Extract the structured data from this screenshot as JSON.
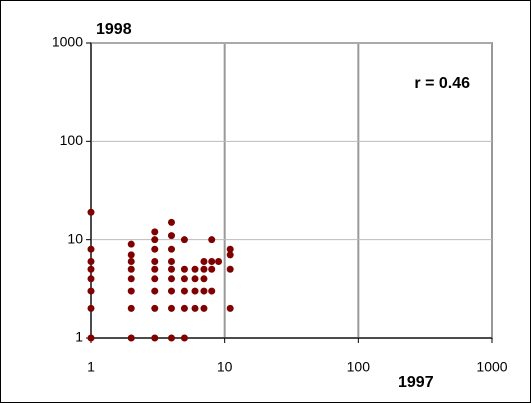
{
  "chart_data": {
    "type": "scatter",
    "y_label": "1998",
    "x_label": "1997",
    "annotation": "r = 0.46",
    "log_scale": true,
    "grid": true,
    "color": "#7f0000",
    "xlim": [
      1,
      1000
    ],
    "ylim": [
      1,
      1000
    ],
    "xticks": [
      1,
      10,
      100,
      1000
    ],
    "yticks": [
      1,
      10,
      100,
      1000
    ],
    "x": [
      1,
      1,
      1,
      1,
      1,
      1,
      1,
      1,
      2,
      2,
      2,
      2,
      2,
      2,
      2,
      2,
      3,
      3,
      3,
      3,
      3,
      3,
      3,
      3,
      3,
      4,
      4,
      4,
      4,
      4,
      4,
      4,
      4,
      4,
      5,
      5,
      5,
      5,
      5,
      5,
      6,
      6,
      6,
      6,
      7,
      7,
      7,
      7,
      7,
      8,
      8,
      8,
      8,
      9,
      11,
      11,
      11,
      11
    ],
    "values": [
      19,
      8,
      6,
      5,
      4,
      3,
      2,
      1,
      9,
      7,
      6,
      5,
      4,
      3,
      2,
      1,
      12,
      10,
      8,
      6,
      5,
      4,
      3,
      2,
      1,
      15,
      11,
      8,
      6,
      5,
      4,
      3,
      2,
      1,
      10,
      5,
      4,
      3,
      2,
      1,
      5,
      4,
      3,
      2,
      6,
      5,
      4,
      3,
      2,
      10,
      6,
      5,
      3,
      6,
      8,
      7,
      5,
      2
    ]
  }
}
